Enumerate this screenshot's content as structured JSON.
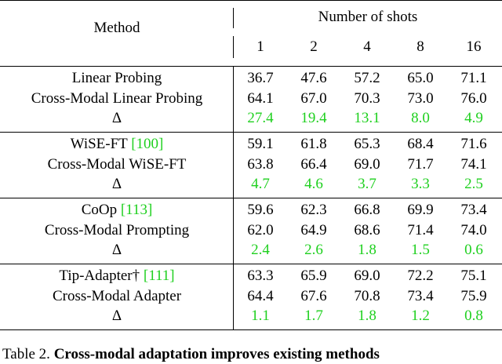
{
  "header": {
    "method": "Method",
    "shots_title": "Number of shots",
    "shots": [
      "1",
      "2",
      "4",
      "8",
      "16"
    ]
  },
  "groups": [
    {
      "rows": [
        {
          "method": "Linear Probing",
          "ref": "",
          "values": [
            "36.7",
            "47.6",
            "57.2",
            "65.0",
            "71.1"
          ]
        },
        {
          "method": "Cross-Modal Linear Probing",
          "ref": "",
          "values": [
            "64.1",
            "67.0",
            "70.3",
            "73.0",
            "76.0"
          ]
        },
        {
          "method": "Δ",
          "ref": "",
          "values": [
            "27.4",
            "19.4",
            "13.1",
            "8.0",
            "4.9"
          ]
        }
      ]
    },
    {
      "rows": [
        {
          "method": "WiSE-FT ",
          "ref": "[100]",
          "values": [
            "59.1",
            "61.8",
            "65.3",
            "68.4",
            "71.6"
          ]
        },
        {
          "method": "Cross-Modal WiSE-FT",
          "ref": "",
          "values": [
            "63.8",
            "66.4",
            "69.0",
            "71.7",
            "74.1"
          ]
        },
        {
          "method": "Δ",
          "ref": "",
          "values": [
            "4.7",
            "4.6",
            "3.7",
            "3.3",
            "2.5"
          ]
        }
      ]
    },
    {
      "rows": [
        {
          "method": "CoOp ",
          "ref": "[113]",
          "values": [
            "59.6",
            "62.3",
            "66.8",
            "69.9",
            "73.4"
          ]
        },
        {
          "method": "Cross-Modal Prompting",
          "ref": "",
          "values": [
            "62.0",
            "64.9",
            "68.6",
            "71.4",
            "74.0"
          ]
        },
        {
          "method": "Δ",
          "ref": "",
          "values": [
            "2.4",
            "2.6",
            "1.8",
            "1.5",
            "0.6"
          ]
        }
      ]
    },
    {
      "rows": [
        {
          "method": "Tip-Adapter† ",
          "ref": "[111]",
          "values": [
            "63.3",
            "65.9",
            "69.0",
            "72.2",
            "75.1"
          ]
        },
        {
          "method": "Cross-Modal Adapter",
          "ref": "",
          "values": [
            "64.4",
            "67.6",
            "70.8",
            "73.4",
            "75.9"
          ]
        },
        {
          "method": "Δ",
          "ref": "",
          "values": [
            "1.1",
            "1.7",
            "1.8",
            "1.2",
            "0.8"
          ]
        }
      ]
    }
  ],
  "caption": {
    "prefix": "Table 2. ",
    "bold": "Cross-modal adaptation improves existing methods"
  },
  "colors": {
    "delta": "#1fd01f",
    "reference": "#1fd01f",
    "text": "#000000"
  }
}
